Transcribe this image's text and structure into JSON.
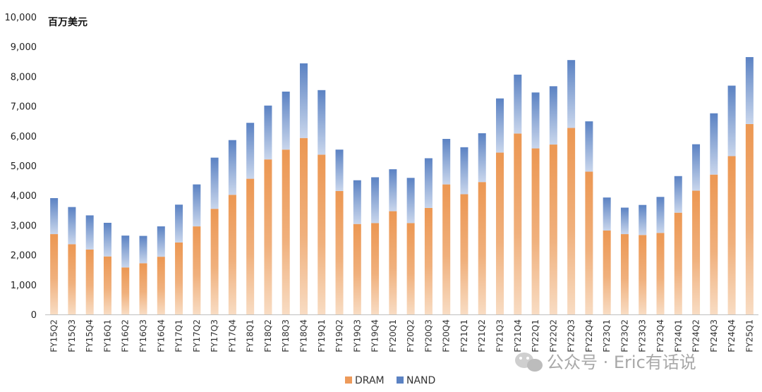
{
  "chart_data": {
    "type": "bar",
    "stacked": true,
    "unit_label": "百万美元",
    "categories": [
      "FY15Q2",
      "FY15Q3",
      "FY15Q4",
      "FY16Q1",
      "FY16Q2",
      "FY16Q3",
      "FY16Q4",
      "FY17Q1",
      "FY17Q2",
      "FY17Q3",
      "FY17Q4",
      "FY18Q1",
      "FY18Q2",
      "FY18Q3",
      "FY18Q4",
      "FY19Q1",
      "FY19Q2",
      "FY19Q3",
      "FY19Q4",
      "FY20Q1",
      "FY20Q2",
      "FY20Q3",
      "FY20Q4",
      "FY21Q1",
      "FY21Q2",
      "FY21Q3",
      "FY21Q4",
      "FY22Q1",
      "FY22Q2",
      "FY22Q3",
      "FY22Q4",
      "FY23Q1",
      "FY23Q2",
      "FY23Q3",
      "FY23Q4",
      "FY24Q1",
      "FY24Q2",
      "FY24Q3",
      "FY24Q4",
      "FY25Q1"
    ],
    "series": [
      {
        "name": "DRAM",
        "color": "#ED9A5A",
        "values": [
          2700,
          2360,
          2180,
          1950,
          1580,
          1720,
          1940,
          2420,
          2960,
          3550,
          4020,
          4560,
          5210,
          5540,
          5930,
          5370,
          4150,
          3040,
          3070,
          3470,
          3070,
          3580,
          4370,
          4040,
          4450,
          5440,
          6080,
          5580,
          5710,
          6270,
          4800,
          2820,
          2700,
          2670,
          2740,
          3420,
          4160,
          4700,
          5320,
          6400
        ]
      },
      {
        "name": "NAND",
        "color": "#5B82C3",
        "values": [
          1210,
          1250,
          1150,
          1130,
          1070,
          920,
          1020,
          1270,
          1410,
          1720,
          1840,
          1880,
          1810,
          1950,
          2510,
          2170,
          1390,
          1470,
          1540,
          1410,
          1520,
          1670,
          1530,
          1580,
          1640,
          1820,
          1980,
          1880,
          1960,
          2280,
          1690,
          1110,
          890,
          1010,
          1210,
          1230,
          1560,
          2060,
          2370,
          2250
        ]
      }
    ],
    "ylim": [
      0,
      10000
    ],
    "y_ticks": [
      "0",
      "1,000",
      "2,000",
      "3,000",
      "4,000",
      "5,000",
      "6,000",
      "7,000",
      "8,000",
      "9,000",
      "10,000"
    ],
    "legend_position": "bottom"
  },
  "watermark": {
    "text": "公众号 · Eric有话说",
    "icon": "wechat-icon"
  }
}
